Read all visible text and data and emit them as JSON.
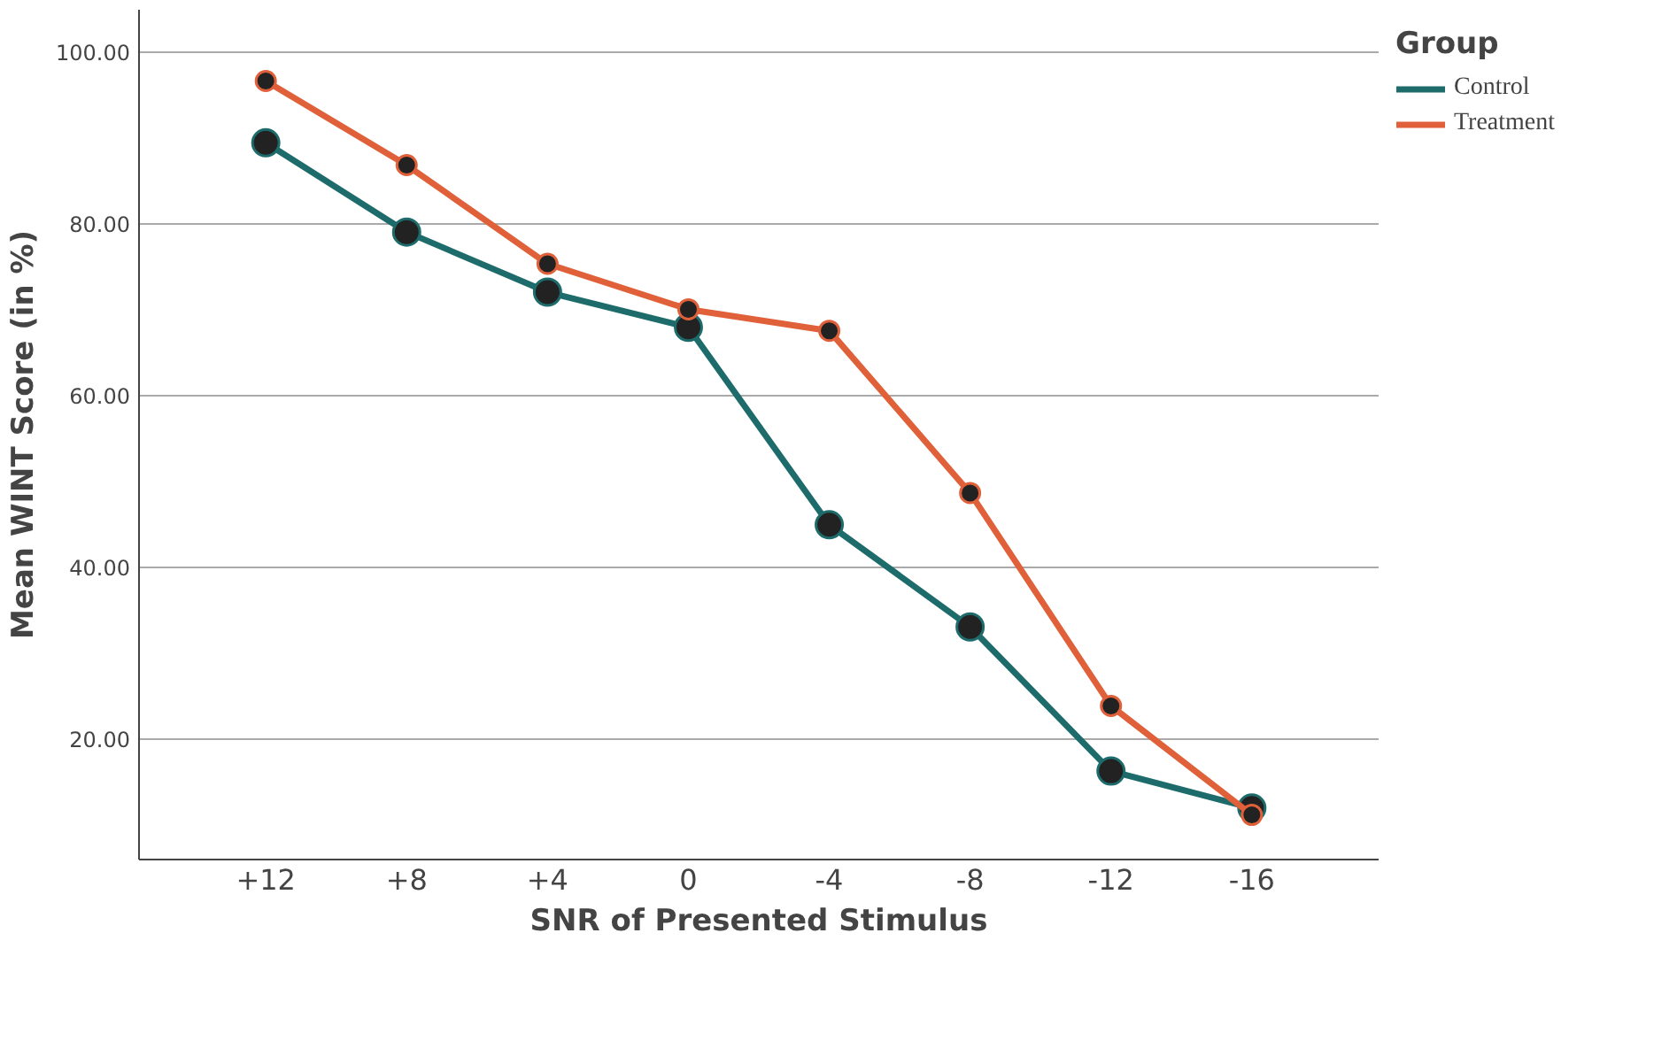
{
  "chart_data": {
    "type": "line",
    "xlabel": "SNR of Presented Stimulus",
    "ylabel": "Mean WINT Score (in %)",
    "legend_title": "Group",
    "categories": [
      "+12",
      "+8",
      "+4",
      "0",
      "-4",
      "-8",
      "-12",
      "-16"
    ],
    "series": [
      {
        "name": "Control",
        "color": "#1d6b6b",
        "values": [
          89.5,
          79.1,
          72.1,
          68,
          45,
          33.1,
          16.3,
          12
        ]
      },
      {
        "name": "Treatment",
        "color": "#e0603a",
        "values": [
          96.7,
          86.9,
          75.4,
          70.1,
          67.6,
          48.7,
          23.9,
          11.2
        ]
      }
    ],
    "ylim": [
      6,
      105
    ],
    "yticks": [
      {
        "value": 20,
        "label": "20.00"
      },
      {
        "value": 40,
        "label": "40.00"
      },
      {
        "value": 60,
        "label": "60.00"
      },
      {
        "value": 80,
        "label": "80.00"
      },
      {
        "value": 100,
        "label": "100.00"
      }
    ],
    "grid": "y",
    "legend": "top right",
    "marker": "circle",
    "line_style": "solid"
  }
}
